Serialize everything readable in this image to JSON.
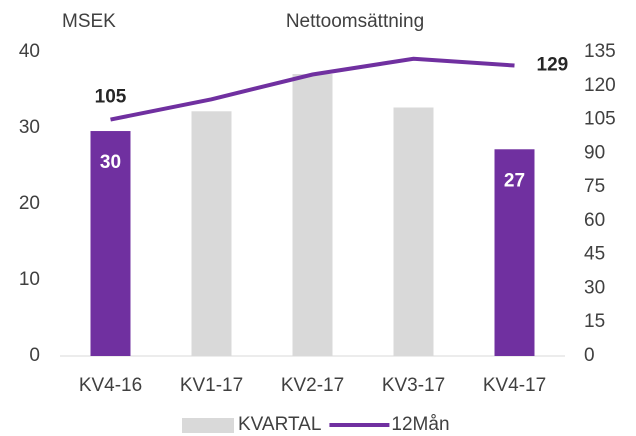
{
  "chart_data": {
    "type": "bar",
    "title": "Nettoomsättning",
    "y_label": "MSEK",
    "categories": [
      "KV4-16",
      "KV1-17",
      "KV2-17",
      "KV3-17",
      "KV4-17"
    ],
    "series": [
      {
        "name": "KVARTAL",
        "type": "bar",
        "color": "#d9d9d9",
        "colors": [
          "#7030a0",
          "#d9d9d9",
          "#d9d9d9",
          "#d9d9d9",
          "#7030a0"
        ],
        "values": [
          29.6,
          32.2,
          37.1,
          32.7,
          27.2
        ],
        "value_labels": [
          "30",
          null,
          null,
          null,
          "27"
        ]
      },
      {
        "name": "12Mån",
        "type": "line",
        "axis": "y2",
        "color": "#7030a0",
        "values": [
          105,
          114,
          125,
          132,
          129
        ],
        "value_labels": [
          "105",
          null,
          null,
          null,
          "129"
        ]
      }
    ],
    "ylim": [
      0,
      40
    ],
    "yticks": [
      0,
      10,
      20,
      30,
      40
    ],
    "y2lim": [
      0,
      135
    ],
    "y2ticks": [
      0,
      15,
      30,
      45,
      60,
      75,
      90,
      105,
      120,
      135
    ],
    "grid": false,
    "legend": "bottom"
  }
}
